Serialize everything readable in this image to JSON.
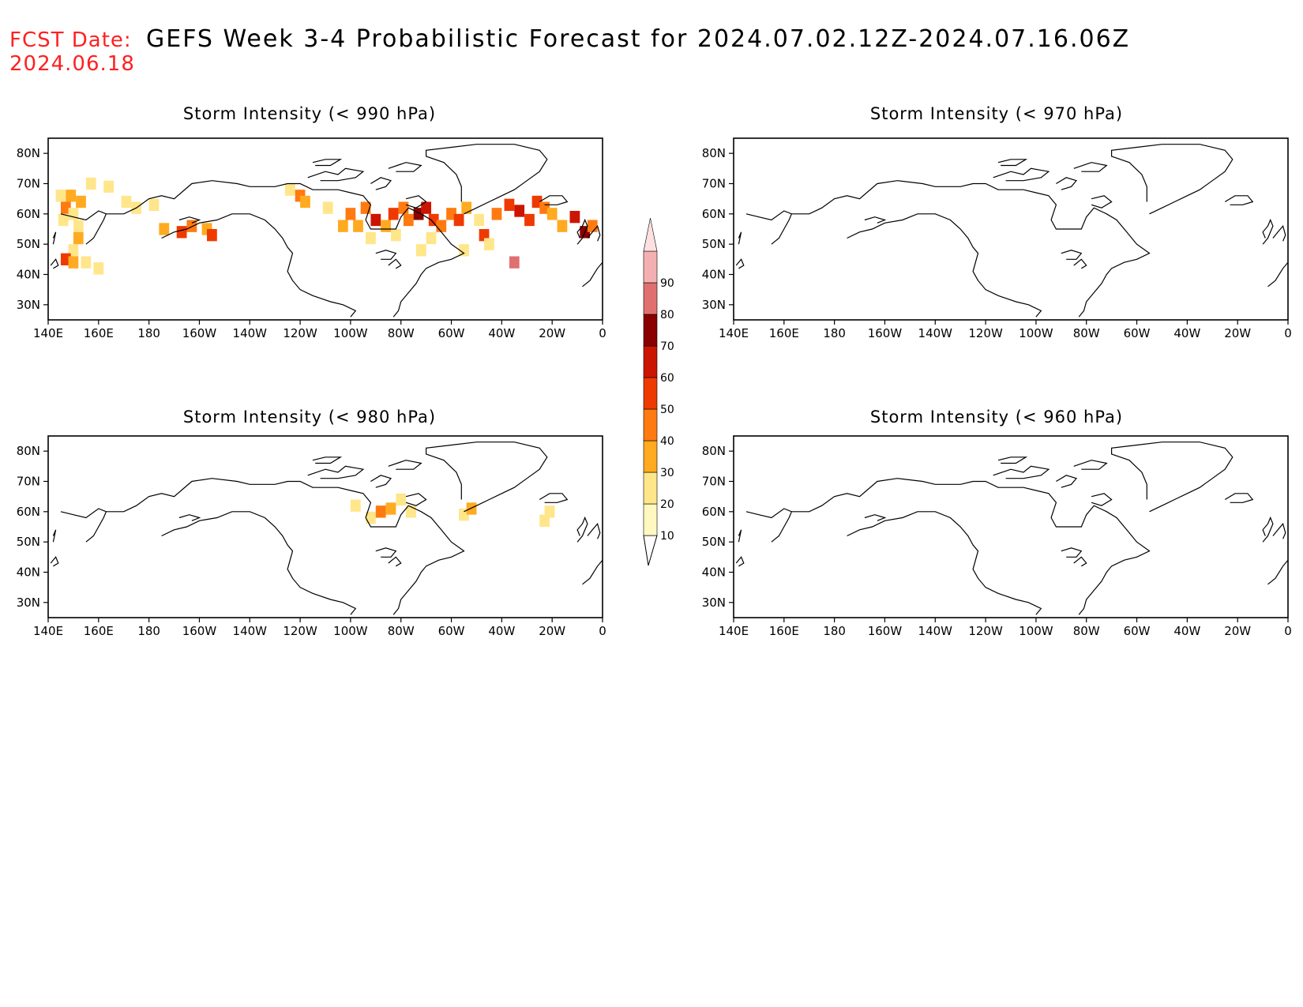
{
  "header": {
    "fcst_label": "FCST Date:",
    "fcst_date": "2024.06.18",
    "title": "GEFS Week 3-4 Probabilistic Forecast for 2024.07.02.12Z-2024.07.16.06Z"
  },
  "axes": {
    "lon_ticks": [
      "140E",
      "160E",
      "180",
      "160W",
      "140W",
      "120W",
      "100W",
      "80W",
      "60W",
      "40W",
      "20W",
      "0"
    ],
    "lat_ticks": [
      "80N",
      "70N",
      "60N",
      "50N",
      "40N",
      "30N"
    ]
  },
  "colorbar": {
    "levels": [
      "10",
      "20",
      "30",
      "40",
      "50",
      "60",
      "70",
      "80",
      "90"
    ],
    "colors": [
      "#fff8c0",
      "#ffe68a",
      "#ffaa20",
      "#ff7a10",
      "#ee3a00",
      "#cc1500",
      "#8a0000",
      "#e07070",
      "#f4b0b0",
      "#ffe0e0"
    ]
  },
  "panels": [
    {
      "id": "990",
      "title": "Storm Intensity (< 990 hPa)",
      "lon_range": [
        140,
        360
      ],
      "lat_range": [
        25,
        85
      ],
      "cells": [
        [
          145,
          66,
          20
        ],
        [
          149,
          66,
          30
        ],
        [
          153,
          64,
          30
        ],
        [
          147,
          62,
          40
        ],
        [
          150,
          60,
          20
        ],
        [
          146,
          58,
          20
        ],
        [
          152,
          56,
          20
        ],
        [
          152,
          52,
          30
        ],
        [
          150,
          48,
          20
        ],
        [
          147,
          45,
          50
        ],
        [
          150,
          44,
          30
        ],
        [
          155,
          44,
          20
        ],
        [
          160,
          42,
          20
        ],
        [
          157,
          70,
          20
        ],
        [
          164,
          69,
          20
        ],
        [
          171,
          64,
          20
        ],
        [
          175,
          62,
          20
        ],
        [
          182,
          63,
          20
        ],
        [
          186,
          55,
          30
        ],
        [
          193,
          54,
          50
        ],
        [
          197,
          56,
          40
        ],
        [
          203,
          55,
          30
        ],
        [
          205,
          53,
          50
        ],
        [
          236,
          68,
          20
        ],
        [
          240,
          66,
          40
        ],
        [
          242,
          64,
          30
        ],
        [
          251,
          62,
          20
        ],
        [
          257,
          56,
          30
        ],
        [
          260,
          60,
          40
        ],
        [
          263,
          56,
          30
        ],
        [
          266,
          62,
          40
        ],
        [
          270,
          58,
          60
        ],
        [
          274,
          56,
          30
        ],
        [
          277,
          60,
          50
        ],
        [
          281,
          62,
          40
        ],
        [
          283,
          58,
          40
        ],
        [
          287,
          60,
          70
        ],
        [
          290,
          62,
          60
        ],
        [
          293,
          58,
          50
        ],
        [
          296,
          56,
          40
        ],
        [
          300,
          60,
          40
        ],
        [
          303,
          58,
          50
        ],
        [
          306,
          62,
          30
        ],
        [
          311,
          58,
          20
        ],
        [
          313,
          53,
          50
        ],
        [
          318,
          60,
          40
        ],
        [
          323,
          63,
          50
        ],
        [
          327,
          61,
          60
        ],
        [
          331,
          58,
          50
        ],
        [
          334,
          64,
          50
        ],
        [
          337,
          62,
          40
        ],
        [
          340,
          60,
          30
        ],
        [
          344,
          56,
          30
        ],
        [
          349,
          59,
          60
        ],
        [
          353,
          54,
          70
        ],
        [
          356,
          56,
          40
        ],
        [
          268,
          52,
          20
        ],
        [
          278,
          53,
          20
        ],
        [
          292,
          52,
          20
        ],
        [
          305,
          48,
          20
        ],
        [
          315,
          50,
          20
        ],
        [
          325,
          44,
          80
        ],
        [
          288,
          48,
          20
        ]
      ]
    },
    {
      "id": "970",
      "title": "Storm Intensity (< 970 hPa)",
      "lon_range": [
        140,
        360
      ],
      "lat_range": [
        25,
        85
      ],
      "cells": []
    },
    {
      "id": "980",
      "title": "Storm Intensity (< 980 hPa)",
      "lon_range": [
        140,
        360
      ],
      "lat_range": [
        25,
        85
      ],
      "cells": [
        [
          262,
          62,
          20
        ],
        [
          268,
          58,
          20
        ],
        [
          272,
          60,
          40
        ],
        [
          276,
          61,
          30
        ],
        [
          280,
          64,
          20
        ],
        [
          284,
          60,
          20
        ],
        [
          305,
          59,
          20
        ],
        [
          308,
          61,
          30
        ],
        [
          337,
          57,
          20
        ],
        [
          339,
          60,
          20
        ]
      ]
    },
    {
      "id": "960",
      "title": "Storm Intensity (< 960 hPa)",
      "lon_range": [
        140,
        360
      ],
      "lat_range": [
        25,
        85
      ],
      "cells": []
    }
  ]
}
